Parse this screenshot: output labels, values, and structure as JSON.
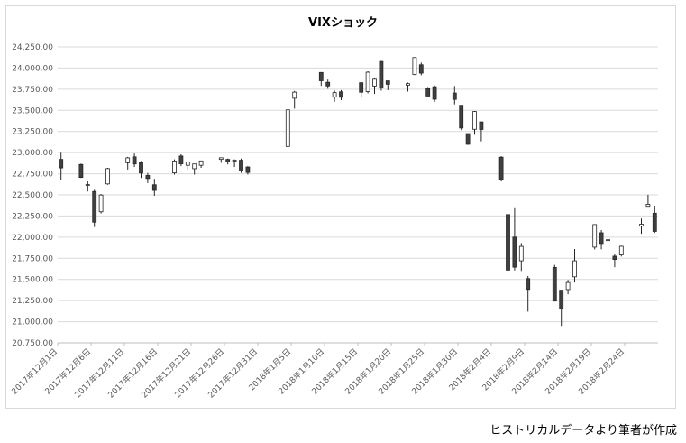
{
  "chart_data": {
    "type": "candlestick",
    "title": "VIXショック",
    "ylim": [
      20750,
      24250
    ],
    "y_ticks": [
      20750,
      21000,
      21250,
      21500,
      21750,
      22000,
      22250,
      22500,
      22750,
      23000,
      23250,
      23500,
      23750,
      24000,
      24250
    ],
    "y_tick_labels": [
      "20,750.00",
      "21,000.00",
      "21,250.00",
      "21,500.00",
      "21,750.00",
      "22,000.00",
      "22,250.00",
      "22,500.00",
      "22,750.00",
      "23,000.00",
      "23,250.00",
      "23,500.00",
      "23,750.00",
      "24,000.00",
      "24,250.00"
    ],
    "x_range": [
      "2017-12-01",
      "2018-02-28"
    ],
    "x_ticks": [
      "2017-12-01",
      "2017-12-06",
      "2017-12-11",
      "2017-12-16",
      "2017-12-21",
      "2017-12-26",
      "2017-12-31",
      "2018-01-05",
      "2018-01-10",
      "2018-01-15",
      "2018-01-20",
      "2018-01-25",
      "2018-01-30",
      "2018-02-04",
      "2018-02-09",
      "2018-02-14",
      "2018-02-19",
      "2018-02-24"
    ],
    "x_tick_labels": [
      "2017年12月1日",
      "2017年12月6日",
      "2017年12月11日",
      "2017年12月16日",
      "2017年12月21日",
      "2017年12月26日",
      "2017年12月31日",
      "2018年1月5日",
      "2018年1月10日",
      "2018年1月15日",
      "2018年1月20日",
      "2018年1月25日",
      "2018年1月30日",
      "2018年2月4日",
      "2018年2月9日",
      "2018年2月14日",
      "2018年2月19日",
      "2018年2月24日"
    ],
    "candles": [
      {
        "date": "2017-12-01",
        "open": 22920,
        "high": 22998,
        "low": 22680,
        "close": 22819
      },
      {
        "date": "2017-12-04",
        "open": 22860,
        "high": 22870,
        "low": 22700,
        "close": 22707
      },
      {
        "date": "2017-12-05",
        "open": 22620,
        "high": 22660,
        "low": 22540,
        "close": 22622
      },
      {
        "date": "2017-12-06",
        "open": 22540,
        "high": 22560,
        "low": 22120,
        "close": 22177
      },
      {
        "date": "2017-12-07",
        "open": 22300,
        "high": 22510,
        "low": 22280,
        "close": 22498
      },
      {
        "date": "2017-12-08",
        "open": 22630,
        "high": 22820,
        "low": 22620,
        "close": 22811
      },
      {
        "date": "2017-12-11",
        "open": 22880,
        "high": 22950,
        "low": 22800,
        "close": 22938
      },
      {
        "date": "2017-12-12",
        "open": 22950,
        "high": 22990,
        "low": 22830,
        "close": 22866
      },
      {
        "date": "2017-12-13",
        "open": 22880,
        "high": 22900,
        "low": 22700,
        "close": 22758
      },
      {
        "date": "2017-12-14",
        "open": 22730,
        "high": 22760,
        "low": 22640,
        "close": 22694
      },
      {
        "date": "2017-12-15",
        "open": 22620,
        "high": 22690,
        "low": 22490,
        "close": 22553
      },
      {
        "date": "2017-12-18",
        "open": 22760,
        "high": 22920,
        "low": 22740,
        "close": 22901
      },
      {
        "date": "2017-12-19",
        "open": 22960,
        "high": 22980,
        "low": 22840,
        "close": 22868
      },
      {
        "date": "2017-12-20",
        "open": 22850,
        "high": 22890,
        "low": 22800,
        "close": 22891
      },
      {
        "date": "2017-12-21",
        "open": 22810,
        "high": 22860,
        "low": 22740,
        "close": 22866
      },
      {
        "date": "2017-12-22",
        "open": 22850,
        "high": 22900,
        "low": 22820,
        "close": 22902
      },
      {
        "date": "2017-12-25",
        "open": 22920,
        "high": 22940,
        "low": 22880,
        "close": 22939
      },
      {
        "date": "2017-12-26",
        "open": 22920,
        "high": 22930,
        "low": 22860,
        "close": 22892
      },
      {
        "date": "2017-12-27",
        "open": 22900,
        "high": 22920,
        "low": 22830,
        "close": 22911
      },
      {
        "date": "2017-12-28",
        "open": 22910,
        "high": 22930,
        "low": 22760,
        "close": 22783
      },
      {
        "date": "2017-12-29",
        "open": 22830,
        "high": 22840,
        "low": 22740,
        "close": 22765
      },
      {
        "date": "2018-01-04",
        "open": 23073,
        "high": 23506,
        "low": 23065,
        "close": 23506
      },
      {
        "date": "2018-01-05",
        "open": 23643,
        "high": 23730,
        "low": 23520,
        "close": 23715
      },
      {
        "date": "2018-01-09",
        "open": 23948,
        "high": 23952,
        "low": 23789,
        "close": 23850
      },
      {
        "date": "2018-01-10",
        "open": 23832,
        "high": 23864,
        "low": 23755,
        "close": 23788
      },
      {
        "date": "2018-01-11",
        "open": 23656,
        "high": 23734,
        "low": 23601,
        "close": 23710
      },
      {
        "date": "2018-01-12",
        "open": 23719,
        "high": 23739,
        "low": 23620,
        "close": 23654
      },
      {
        "date": "2018-01-15",
        "open": 23827,
        "high": 23833,
        "low": 23650,
        "close": 23714
      },
      {
        "date": "2018-01-16",
        "open": 23721,
        "high": 23962,
        "low": 23701,
        "close": 23951
      },
      {
        "date": "2018-01-17",
        "open": 23787,
        "high": 23882,
        "low": 23694,
        "close": 23868
      },
      {
        "date": "2018-01-18",
        "open": 24078,
        "high": 24084,
        "low": 23733,
        "close": 23763
      },
      {
        "date": "2018-01-19",
        "open": 23849,
        "high": 23849,
        "low": 23739,
        "close": 23808
      },
      {
        "date": "2018-01-22",
        "open": 23797,
        "high": 23828,
        "low": 23722,
        "close": 23816
      },
      {
        "date": "2018-01-23",
        "open": 23924,
        "high": 24129,
        "low": 23916,
        "close": 24124
      },
      {
        "date": "2018-01-24",
        "open": 24039,
        "high": 24065,
        "low": 23914,
        "close": 23940
      },
      {
        "date": "2018-01-25",
        "open": 23757,
        "high": 23776,
        "low": 23669,
        "close": 23669
      },
      {
        "date": "2018-01-26",
        "open": 23779,
        "high": 23793,
        "low": 23600,
        "close": 23631
      },
      {
        "date": "2018-01-29",
        "open": 23705,
        "high": 23787,
        "low": 23570,
        "close": 23629
      },
      {
        "date": "2018-01-30",
        "open": 23560,
        "high": 23560,
        "low": 23266,
        "close": 23291
      },
      {
        "date": "2018-01-31",
        "open": 23225,
        "high": 23227,
        "low": 23092,
        "close": 23098
      },
      {
        "date": "2018-02-01",
        "open": 23276,
        "high": 23492,
        "low": 23211,
        "close": 23486
      },
      {
        "date": "2018-02-02",
        "open": 23363,
        "high": 23367,
        "low": 23133,
        "close": 23274
      },
      {
        "date": "2018-02-05",
        "open": 22946,
        "high": 22958,
        "low": 22659,
        "close": 22682
      },
      {
        "date": "2018-02-06",
        "open": 22267,
        "high": 22279,
        "low": 21078,
        "close": 21610
      },
      {
        "date": "2018-02-07",
        "open": 22001,
        "high": 22353,
        "low": 21606,
        "close": 21645
      },
      {
        "date": "2018-02-08",
        "open": 21720,
        "high": 21930,
        "low": 21600,
        "close": 21891
      },
      {
        "date": "2018-02-09",
        "open": 21510,
        "high": 21540,
        "low": 21119,
        "close": 21382
      },
      {
        "date": "2018-02-13",
        "open": 21642,
        "high": 21672,
        "low": 21244,
        "close": 21244
      },
      {
        "date": "2018-02-14",
        "open": 21373,
        "high": 21370,
        "low": 20950,
        "close": 21154
      },
      {
        "date": "2018-02-15",
        "open": 21380,
        "high": 21494,
        "low": 21325,
        "close": 21464
      },
      {
        "date": "2018-02-16",
        "open": 21531,
        "high": 21860,
        "low": 21464,
        "close": 21720
      },
      {
        "date": "2018-02-19",
        "open": 21882,
        "high": 22152,
        "low": 21855,
        "close": 22149
      },
      {
        "date": "2018-02-20",
        "open": 22052,
        "high": 22084,
        "low": 21857,
        "close": 21925
      },
      {
        "date": "2018-02-21",
        "open": 21961,
        "high": 22113,
        "low": 21906,
        "close": 21970
      },
      {
        "date": "2018-02-22",
        "open": 21775,
        "high": 21796,
        "low": 21645,
        "close": 21736
      },
      {
        "date": "2018-02-23",
        "open": 21790,
        "high": 21900,
        "low": 21771,
        "close": 21892
      },
      {
        "date": "2018-02-26",
        "open": 22130,
        "high": 22220,
        "low": 22040,
        "close": 22153
      },
      {
        "date": "2018-02-27",
        "open": 22364,
        "high": 22502,
        "low": 22364,
        "close": 22389
      },
      {
        "date": "2018-02-28",
        "open": 22283,
        "high": 22372,
        "low": 22050,
        "close": 22068
      }
    ],
    "colors": {
      "up_fill": "#ffffff",
      "down_fill": "#404040",
      "stroke": "#262626",
      "grid": "#d9d9d9",
      "axis": "#bfbfbf"
    },
    "grid": true,
    "legend": "none"
  },
  "source_note": "ヒストリカルデータより筆者が作成"
}
